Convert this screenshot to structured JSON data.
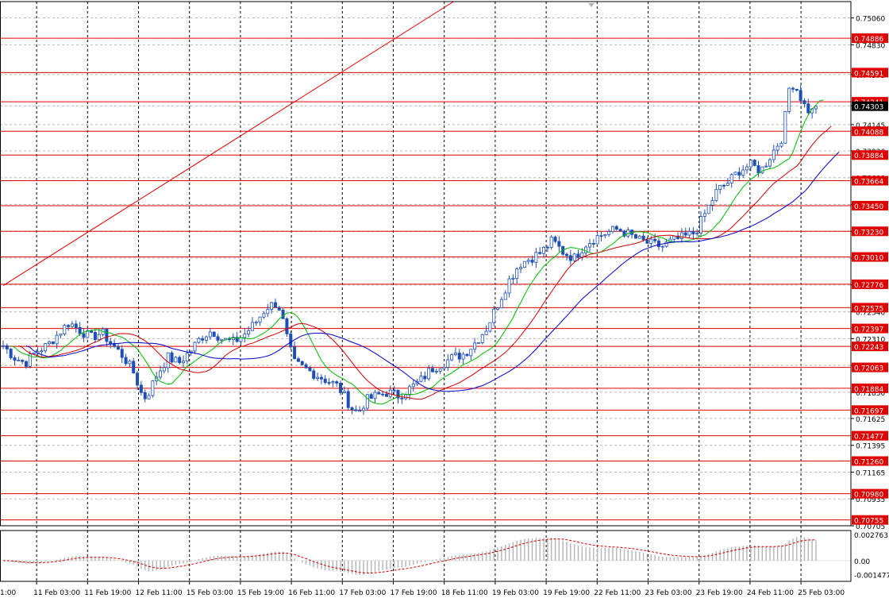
{
  "chart_data": {
    "type": "candlestick",
    "title": "",
    "xlabel": "",
    "ylabel": "",
    "main_panel": {
      "ylim": [
        0.70705,
        0.752
      ],
      "y_tick_labels": [
        "0.75060",
        "0.74830",
        "0.74575",
        "0.74305",
        "0.74145",
        "0.73920",
        "0.73690",
        "0.73460",
        "0.73230",
        "0.73000",
        "0.72770",
        "0.72540",
        "0.72310",
        "0.72080",
        "0.71850",
        "0.71625",
        "0.71395",
        "0.71165",
        "0.70935",
        "0.70705"
      ],
      "price_levels": [
        "0.74886",
        "0.74591",
        "0.74341",
        "0.74088",
        "0.73884",
        "0.73664",
        "0.73450",
        "0.73230",
        "0.73010",
        "0.72776",
        "0.72575",
        "0.72397",
        "0.72243",
        "0.72063",
        "0.71884",
        "0.71697",
        "0.71477",
        "0.71260",
        "0.70980",
        "0.70755"
      ],
      "current_price": "0.74303",
      "trend_line": {
        "start": {
          "x": 0,
          "y": 0.72765
        },
        "end": {
          "x": 82,
          "y": 0.752
        }
      },
      "close_path": [
        [
          0,
          0.7225
        ],
        [
          2,
          0.7215
        ],
        [
          4,
          0.721
        ],
        [
          6,
          0.722
        ],
        [
          8,
          0.7225
        ],
        [
          10,
          0.7235
        ],
        [
          12,
          0.7245
        ],
        [
          14,
          0.7238
        ],
        [
          16,
          0.7232
        ],
        [
          18,
          0.7236
        ],
        [
          20,
          0.7225
        ],
        [
          22,
          0.7215
        ],
        [
          24,
          0.72
        ],
        [
          25,
          0.7185
        ],
        [
          26,
          0.718
        ],
        [
          28,
          0.72
        ],
        [
          30,
          0.7215
        ],
        [
          32,
          0.721
        ],
        [
          34,
          0.722
        ],
        [
          36,
          0.7232
        ],
        [
          38,
          0.7238
        ],
        [
          40,
          0.723
        ],
        [
          42,
          0.7228
        ],
        [
          44,
          0.7235
        ],
        [
          46,
          0.7245
        ],
        [
          48,
          0.7258
        ],
        [
          50,
          0.7262
        ],
        [
          51,
          0.7245
        ],
        [
          52,
          0.7225
        ],
        [
          53,
          0.721
        ],
        [
          55,
          0.7205
        ],
        [
          57,
          0.72
        ],
        [
          59,
          0.7195
        ],
        [
          61,
          0.719
        ],
        [
          63,
          0.7175
        ],
        [
          64,
          0.7168
        ],
        [
          65,
          0.717
        ],
        [
          66,
          0.7178
        ],
        [
          68,
          0.7182
        ],
        [
          70,
          0.7185
        ],
        [
          72,
          0.7182
        ],
        [
          74,
          0.7188
        ],
        [
          76,
          0.7195
        ],
        [
          78,
          0.7205
        ],
        [
          80,
          0.721
        ],
        [
          82,
          0.7215
        ],
        [
          84,
          0.7218
        ],
        [
          86,
          0.7228
        ],
        [
          88,
          0.724
        ],
        [
          90,
          0.726
        ],
        [
          92,
          0.728
        ],
        [
          94,
          0.7295
        ],
        [
          96,
          0.73
        ],
        [
          98,
          0.7305
        ],
        [
          100,
          0.7315
        ],
        [
          102,
          0.7305
        ],
        [
          104,
          0.73
        ],
        [
          106,
          0.7312
        ],
        [
          108,
          0.7318
        ],
        [
          110,
          0.7322
        ],
        [
          112,
          0.7325
        ],
        [
          114,
          0.732
        ],
        [
          116,
          0.7315
        ],
        [
          118,
          0.7312
        ],
        [
          120,
          0.731
        ],
        [
          122,
          0.7315
        ],
        [
          124,
          0.7318
        ],
        [
          126,
          0.7322
        ],
        [
          128,
          0.734
        ],
        [
          130,
          0.7358
        ],
        [
          132,
          0.7365
        ],
        [
          134,
          0.7375
        ],
        [
          136,
          0.738
        ],
        [
          138,
          0.7375
        ],
        [
          140,
          0.739
        ],
        [
          142,
          0.7405
        ],
        [
          143,
          0.7445
        ],
        [
          144,
          0.745
        ],
        [
          145,
          0.744
        ],
        [
          146,
          0.743
        ],
        [
          147,
          0.7425
        ],
        [
          148,
          0.7428
        ]
      ],
      "moving_averages": [
        {
          "color": "#00bb00",
          "period": 8,
          "offset": 2
        },
        {
          "color": "#cc0000",
          "period": 16,
          "offset": 4
        },
        {
          "color": "#0000cc",
          "period": 30,
          "offset": 6
        }
      ]
    },
    "oscillator_panel": {
      "ylim": [
        -0.0022,
        0.0032
      ],
      "y_tick_labels": [
        "0.002763",
        "0.00",
        "-0.001477"
      ],
      "y_tick_values": [
        0.002763,
        0.0,
        -0.001477
      ],
      "histogram_color": "#b4b4b4",
      "signal_color": "#cc0000"
    },
    "x_axis": {
      "tick_labels": [
        "1:00",
        "11 Feb 03:00",
        "11 Feb 19:00",
        "12 Feb 11:00",
        "15 Feb 03:00",
        "15 Feb 19:00",
        "16 Feb 11:00",
        "17 Feb 03:00",
        "17 Feb 19:00",
        "18 Feb 11:00",
        "19 Feb 03:00",
        "19 Feb 19:00",
        "22 Feb 11:00",
        "23 Feb 03:00",
        "23 Feb 19:00",
        "24 Feb 11:00",
        "25 Feb 03:00"
      ]
    },
    "grid": true,
    "colors": {
      "background": "#ffffff",
      "candle": "#1f4fb4",
      "level_line": "#e00000",
      "grid": "#b8b8b8",
      "current_price_bg": "#000000"
    }
  }
}
